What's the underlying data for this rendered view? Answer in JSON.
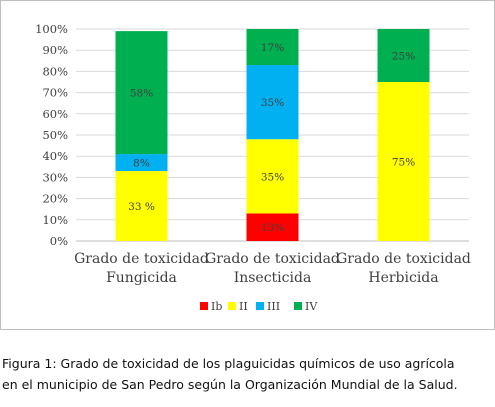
{
  "chart_data": {
    "type": "bar",
    "stacked": true,
    "categories": [
      [
        "Grado de toxicidad",
        "Fungicida"
      ],
      [
        "Grado de toxicidad",
        "Insecticida"
      ],
      [
        "Grado de toxicidad",
        "Herbicida"
      ]
    ],
    "series": [
      {
        "name": "Ib",
        "color": "#ff0000",
        "values": [
          0,
          13,
          0
        ],
        "labels": [
          "",
          "13%",
          ""
        ]
      },
      {
        "name": "II",
        "color": "#ffff00",
        "values": [
          33,
          35,
          75
        ],
        "labels": [
          "33 %",
          "35%",
          "75%"
        ]
      },
      {
        "name": "III",
        "color": "#00b0f0",
        "values": [
          8,
          35,
          0
        ],
        "labels": [
          "8%",
          "35%",
          ""
        ]
      },
      {
        "name": "IV",
        "color": "#00b050",
        "values": [
          58,
          17,
          25
        ],
        "labels": [
          "58%",
          "17%",
          "25%"
        ]
      }
    ],
    "ylim": [
      0,
      100
    ],
    "yticks": [
      "0%",
      "10%",
      "20%",
      "30%",
      "40%",
      "50%",
      "60%",
      "70%",
      "80%",
      "90%",
      "100%"
    ],
    "grid": true,
    "legend_position": "bottom"
  },
  "caption": {
    "line1": "Figura 1: Grado de toxicidad de los plaguicidas químicos de uso agrícola",
    "line2": "en el municipio de San Pedro según la Organización Mundial de la Salud."
  }
}
